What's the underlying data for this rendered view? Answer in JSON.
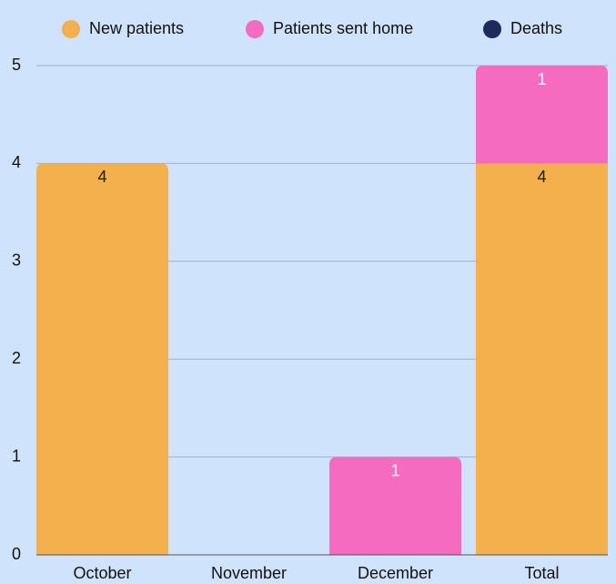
{
  "chart_data": {
    "type": "stacked_bar",
    "categories": [
      "October",
      "November",
      "December",
      "Total"
    ],
    "series": [
      {
        "name": "New patients",
        "color": "#f4b04c",
        "label_color": "#1a1a1a",
        "values": [
          4,
          0,
          0,
          4
        ]
      },
      {
        "name": "Patients sent home",
        "color": "#f56bbf",
        "label_color": "#ffffff",
        "values": [
          0,
          0,
          1,
          1
        ]
      },
      {
        "name": "Deaths",
        "color": "#1f2a5c",
        "label_color": "#ffffff",
        "values": [
          0,
          0,
          0,
          0
        ]
      }
    ],
    "ylim": [
      0,
      5
    ],
    "yticks": [
      0,
      1,
      2,
      3,
      4,
      5
    ],
    "grid": true,
    "legend": "top",
    "background": "#cfe3fc"
  }
}
